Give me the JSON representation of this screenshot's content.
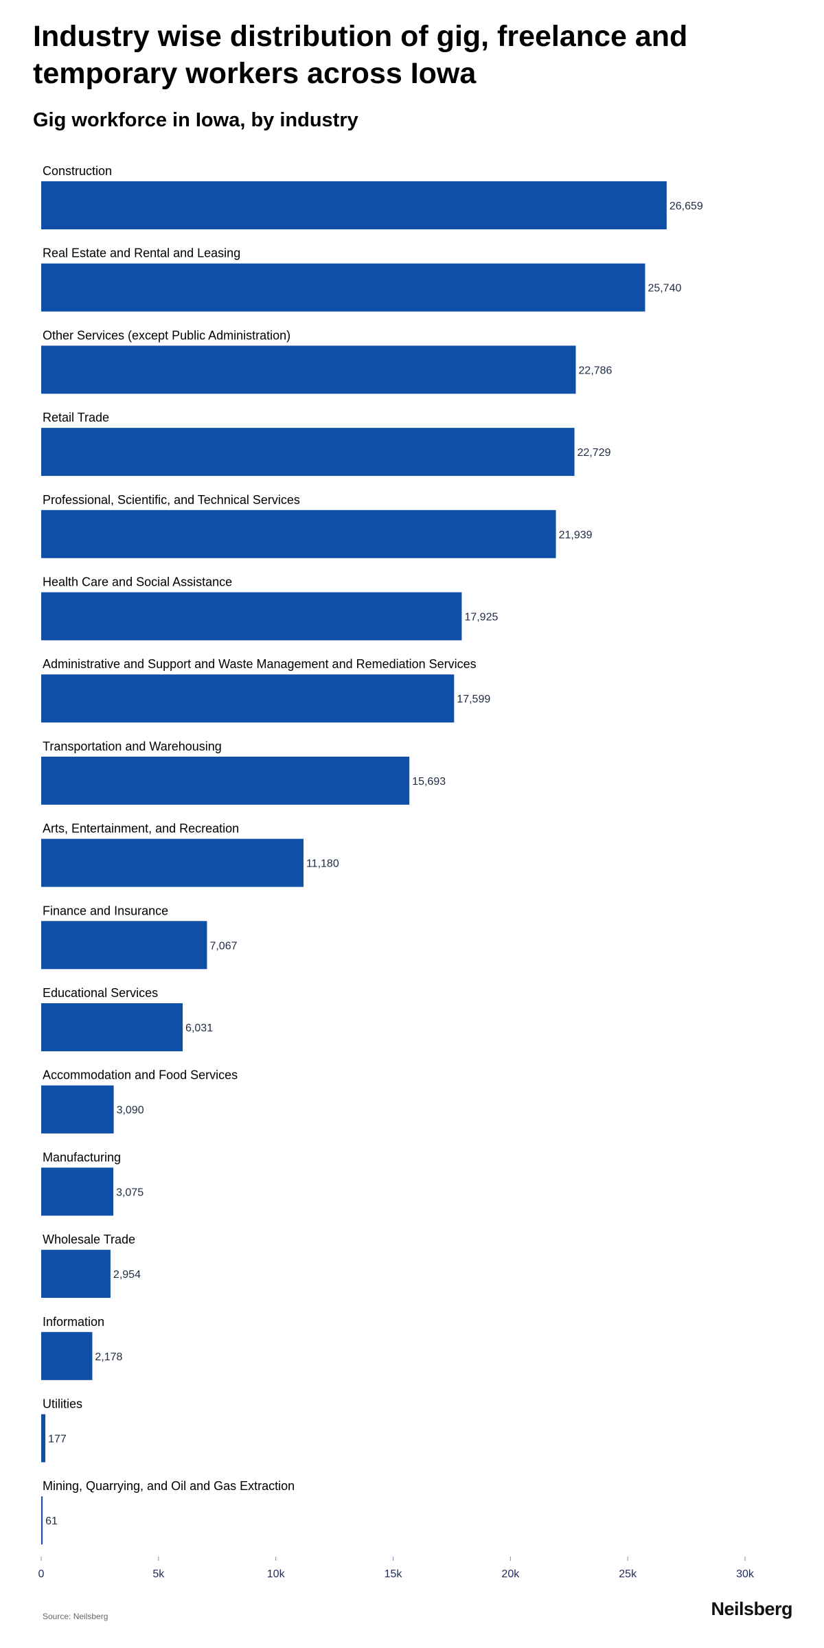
{
  "header": {
    "title": "Industry wise distribution of gig, freelance and temporary workers across Iowa",
    "subtitle": "Gig workforce in Iowa, by industry"
  },
  "footer": {
    "source": "Source: Neilsberg",
    "brand": "Neilsberg"
  },
  "colors": {
    "bar": "#0f4fa8",
    "value_label": "#1f2a44",
    "axis_label": "#1f2a5a"
  },
  "chart_data": {
    "type": "bar",
    "orientation": "horizontal",
    "categories": [
      "Construction",
      "Real Estate and Rental and Leasing",
      "Other Services (except Public Administration)",
      "Retail Trade",
      "Professional, Scientific, and Technical Services",
      "Health Care and Social Assistance",
      "Administrative and Support and Waste Management and Remediation Services",
      "Transportation and Warehousing",
      "Arts, Entertainment, and Recreation",
      "Finance and Insurance",
      "Educational Services",
      "Accommodation and Food Services",
      "Manufacturing",
      "Wholesale Trade",
      "Information",
      "Utilities",
      "Mining, Quarrying, and Oil and Gas Extraction"
    ],
    "values": [
      26659,
      25740,
      22786,
      22729,
      21939,
      17925,
      17599,
      15693,
      11180,
      7067,
      6031,
      3090,
      3075,
      2954,
      2178,
      177,
      61
    ],
    "value_labels": [
      "26,659",
      "25,740",
      "22,786",
      "22,729",
      "21,939",
      "17,925",
      "17,599",
      "15,693",
      "11,180",
      "7,067",
      "6,031",
      "3,090",
      "3,075",
      "2,954",
      "2,178",
      "177",
      "61"
    ],
    "xlim": [
      0,
      30000
    ],
    "xticks": [
      0,
      5000,
      10000,
      15000,
      20000,
      25000,
      30000
    ],
    "xtick_labels": [
      "0",
      "5k",
      "10k",
      "15k",
      "20k",
      "25k",
      "30k"
    ],
    "xlabel": "",
    "ylabel": "",
    "grid": false,
    "legend": "none"
  }
}
